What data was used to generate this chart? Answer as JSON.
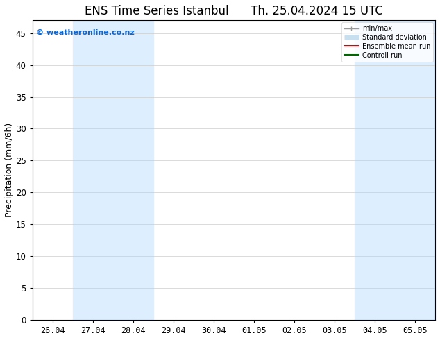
{
  "title": "ENS Time Series Istanbul",
  "title2": "Th. 25.04.2024 15 UTC",
  "ylabel": "Precipitation (mm/6h)",
  "copyright_text": "© weatheronline.co.nz",
  "x_tick_labels": [
    "26.04",
    "27.04",
    "28.04",
    "29.04",
    "30.04",
    "01.05",
    "02.05",
    "03.05",
    "04.05",
    "05.05"
  ],
  "x_tick_positions": [
    0,
    1,
    2,
    3,
    4,
    5,
    6,
    7,
    8,
    9
  ],
  "ylim": [
    0,
    47
  ],
  "xlim": [
    -0.5,
    9.5
  ],
  "yticks": [
    0,
    5,
    10,
    15,
    20,
    25,
    30,
    35,
    40,
    45
  ],
  "shaded_bands": [
    {
      "xmin": 0.5,
      "xmax": 1.5,
      "color": "#ddeeff"
    },
    {
      "xmin": 1.5,
      "xmax": 2.5,
      "color": "#ddeeff"
    },
    {
      "xmin": 7.5,
      "xmax": 8.5,
      "color": "#ddeeff"
    },
    {
      "xmin": 8.5,
      "xmax": 9.5,
      "color": "#ddeeff"
    }
  ],
  "legend_entries": [
    {
      "label": "min/max",
      "color": "#999999",
      "lw": 1.0
    },
    {
      "label": "Standard deviation",
      "color": "#c8dff0",
      "lw": 5
    },
    {
      "label": "Ensemble mean run",
      "color": "#dd0000",
      "lw": 1.5
    },
    {
      "label": "Controll run",
      "color": "#006600",
      "lw": 1.5
    }
  ],
  "bg_color": "#ffffff",
  "grid_color": "#cccccc",
  "title_fontsize": 12,
  "tick_fontsize": 8.5,
  "ylabel_fontsize": 9,
  "band_color": "#ddeeff"
}
